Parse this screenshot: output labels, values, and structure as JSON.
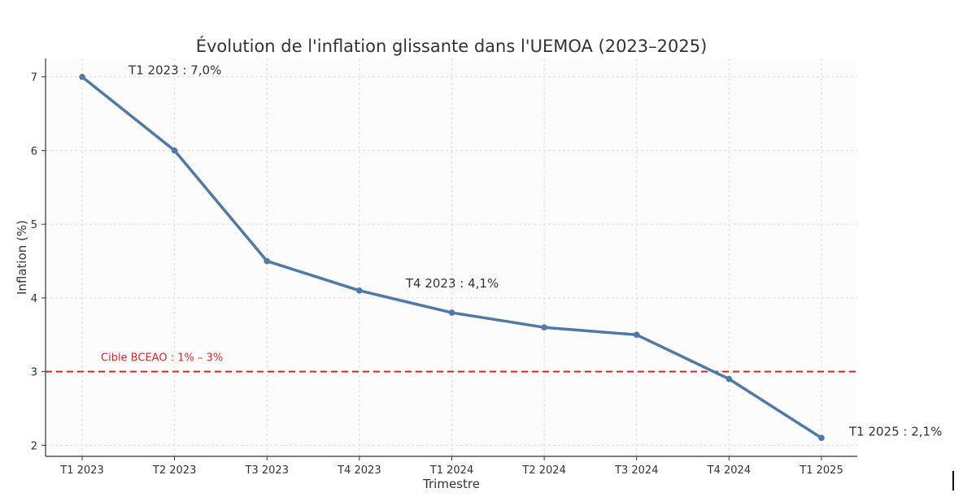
{
  "chart_data": {
    "type": "line",
    "title": "Évolution de l'inflation glissante dans l'UEMOA (2023–2025)",
    "xlabel": "Trimestre",
    "ylabel": "Inflation (%)",
    "categories": [
      "T1 2023",
      "T2 2023",
      "T3 2023",
      "T4 2023",
      "T1 2024",
      "T2 2024",
      "T3 2024",
      "T4 2024",
      "T1 2025"
    ],
    "series": [
      {
        "values": [
          7.0,
          6.0,
          4.5,
          4.1,
          3.8,
          3.6,
          3.5,
          2.9,
          2.1
        ]
      }
    ],
    "y_ticks": [
      "2",
      "3",
      "4",
      "5",
      "6",
      "7"
    ],
    "ylim": [
      1.85,
      7.25
    ],
    "grid": true,
    "target_line": {
      "value": 3,
      "label": "Cible BCEAO : 1% – 3%"
    },
    "annotations": [
      {
        "text": "T1 2023 : 7,0%",
        "category_index": 0
      },
      {
        "text": "T4 2023 : 4,1%",
        "category_index": 3
      },
      {
        "text": "T1 2025 : 2,1%",
        "category_index": 8
      }
    ],
    "colors": {
      "line": "#4f79a8",
      "target": "#d62728",
      "grid": "#dddddd",
      "plot_bg": "#fcfcfc"
    }
  }
}
